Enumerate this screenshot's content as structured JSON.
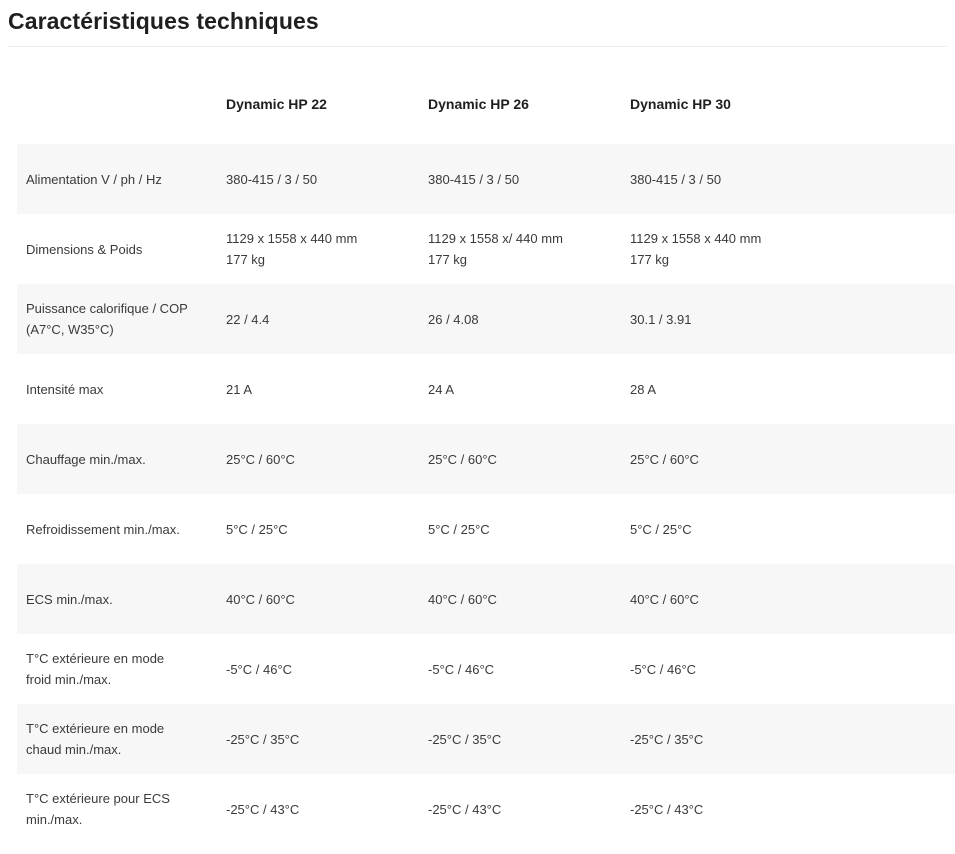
{
  "page": {
    "title": "Caractéristiques techniques"
  },
  "table": {
    "columns": [
      "",
      "Dynamic HP 22",
      "Dynamic HP 26",
      "Dynamic HP 30"
    ],
    "rows": [
      {
        "label": [
          "Alimentation V / ph / Hz"
        ],
        "values": [
          [
            "380-415 / 3 / 50"
          ],
          [
            "380-415 / 3 / 50"
          ],
          [
            "380-415 / 3 / 50"
          ]
        ]
      },
      {
        "label": [
          "Dimensions & Poids"
        ],
        "values": [
          [
            "1129 x 1558 x 440 mm",
            "177 kg"
          ],
          [
            "1129 x 1558 x/ 440 mm",
            "177 kg"
          ],
          [
            "1129 x 1558 x 440 mm",
            "177 kg"
          ]
        ]
      },
      {
        "label": [
          "Puissance calorifique / COP",
          "(A7°C, W35°C)"
        ],
        "values": [
          [
            "22 / 4.4"
          ],
          [
            "26 / 4.08"
          ],
          [
            "30.1 / 3.91"
          ]
        ]
      },
      {
        "label": [
          "Intensité max"
        ],
        "values": [
          [
            "21 A"
          ],
          [
            "24 A"
          ],
          [
            "28 A"
          ]
        ]
      },
      {
        "label": [
          "Chauffage min./max."
        ],
        "values": [
          [
            "25°C / 60°C"
          ],
          [
            "25°C / 60°C"
          ],
          [
            "25°C / 60°C"
          ]
        ]
      },
      {
        "label": [
          "Refroidissement min./max."
        ],
        "values": [
          [
            "5°C / 25°C"
          ],
          [
            "5°C / 25°C"
          ],
          [
            "5°C / 25°C"
          ]
        ]
      },
      {
        "label": [
          "ECS min./max."
        ],
        "values": [
          [
            "40°C / 60°C"
          ],
          [
            "40°C / 60°C"
          ],
          [
            "40°C / 60°C"
          ]
        ]
      },
      {
        "label": [
          "T°C extérieure en mode",
          "froid min./max."
        ],
        "values": [
          [
            "-5°C / 46°C"
          ],
          [
            "-5°C / 46°C"
          ],
          [
            "-5°C / 46°C"
          ]
        ]
      },
      {
        "label": [
          "T°C extérieure en mode",
          "chaud min./max."
        ],
        "values": [
          [
            "-25°C / 35°C"
          ],
          [
            "-25°C / 35°C"
          ],
          [
            "-25°C / 35°C"
          ]
        ]
      },
      {
        "label": [
          "T°C extérieure pour ECS",
          "min./max."
        ],
        "values": [
          [
            "-25°C / 43°C"
          ],
          [
            "-25°C / 43°C"
          ],
          [
            "-25°C / 43°C"
          ]
        ]
      }
    ]
  },
  "colors": {
    "stripe": "#f7f7f7",
    "text": "#3a3a3a",
    "heading": "#1f1f1f"
  }
}
